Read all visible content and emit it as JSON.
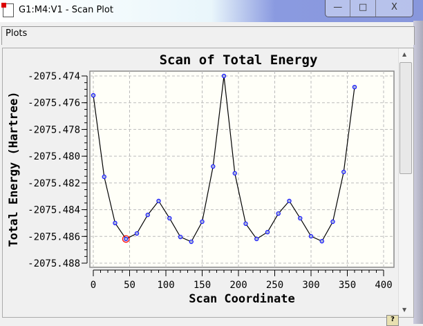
{
  "window": {
    "title": "G1:M4:V1 - Scan Plot",
    "minimize": "—",
    "maximize": "□",
    "close": "X"
  },
  "menu": {
    "items": [
      "Plots"
    ]
  },
  "status": {
    "help_icon": "?"
  },
  "chart_data": {
    "type": "line",
    "title": "Scan of Total Energy",
    "xlabel": "Scan Coordinate",
    "ylabel": "Total Energy (Hartree)",
    "xlim": [
      0,
      400
    ],
    "ylim": [
      -2075.488,
      -2075.474
    ],
    "xticks": [
      0,
      50,
      100,
      150,
      200,
      250,
      300,
      350,
      400
    ],
    "yticks": [
      -2075.474,
      -2075.476,
      -2075.478,
      -2075.48,
      -2075.482,
      -2075.484,
      -2075.486,
      -2075.488
    ],
    "xtick_labels": [
      "0",
      "50",
      "100",
      "150",
      "200",
      "250",
      "300",
      "350",
      "400"
    ],
    "ytick_labels": [
      "-2075.474",
      "-2075.476",
      "-2075.478",
      "-2075.480",
      "-2075.482",
      "-2075.484",
      "-2075.486",
      "-2075.488"
    ],
    "grid": true,
    "x": [
      0,
      15,
      30,
      45,
      60,
      75,
      90,
      105,
      120,
      135,
      150,
      165,
      180,
      195,
      210,
      225,
      240,
      255,
      270,
      285,
      300,
      315,
      330,
      345,
      360
    ],
    "y": [
      -2075.47545,
      -2075.48154,
      -2075.485,
      -2075.48619,
      -2075.48578,
      -2075.48439,
      -2075.48335,
      -2075.48464,
      -2075.48604,
      -2075.4864,
      -2075.4849,
      -2075.48077,
      -2075.474,
      -2075.48128,
      -2075.48505,
      -2075.48619,
      -2075.48568,
      -2075.48429,
      -2075.48335,
      -2075.48464,
      -2075.48599,
      -2075.48636,
      -2075.4849,
      -2075.48118,
      -2075.47483
    ],
    "highlighted_x": 45,
    "colors": {
      "line": "#000000",
      "marker": "#1a1aff",
      "marker_fill": "#a9b4d8",
      "highlight": "#ff0000",
      "background": "#fffff8",
      "grid": "#bbbbbb"
    }
  }
}
